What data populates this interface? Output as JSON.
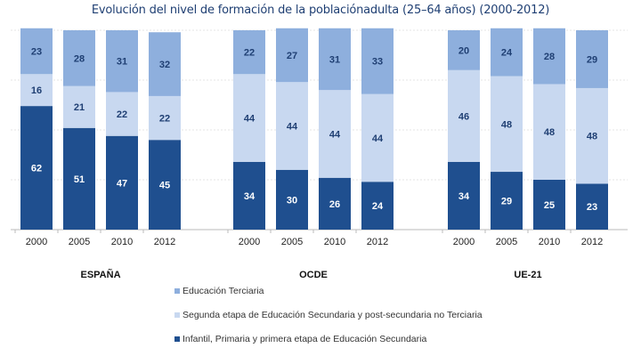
{
  "chart_data": {
    "type": "bar",
    "stacked": true,
    "title": "Evolución del nivel de formación de la poblaciónadulta (25–64 años) (2000-2012)",
    "groups": [
      {
        "name": "ESPAÑA",
        "categories": [
          "2000",
          "2005",
          "2010",
          "2012"
        ],
        "primaria": [
          62,
          51,
          47,
          45
        ],
        "secundaria": [
          16,
          21,
          22,
          22
        ],
        "terciaria": [
          23,
          28,
          31,
          32
        ]
      },
      {
        "name": "OCDE",
        "categories": [
          "2000",
          "2005",
          "2010",
          "2012"
        ],
        "primaria": [
          34,
          30,
          26,
          24
        ],
        "secundaria": [
          44,
          44,
          44,
          44
        ],
        "terciaria": [
          22,
          27,
          31,
          33
        ]
      },
      {
        "name": "UE-21",
        "categories": [
          "2000",
          "2005",
          "2010",
          "2012"
        ],
        "primaria": [
          34,
          29,
          25,
          23
        ],
        "secundaria": [
          46,
          48,
          48,
          48
        ],
        "terciaria": [
          20,
          24,
          28,
          29
        ]
      }
    ],
    "series": [
      {
        "key": "terciaria",
        "name": "Educación Terciaria",
        "color": "#8eafdd",
        "label_color": "#1f3f73"
      },
      {
        "key": "secundaria",
        "name": "Segunda etapa de Educación Secundaria y post-secundaria no Terciaria",
        "color": "#c8d8f0",
        "label_color": "#1f3f73"
      },
      {
        "key": "primaria",
        "name": "Infantil, Primaria y primera etapa de Educación Secundaria",
        "color": "#1f4f8f",
        "label_color": "#ffffff"
      }
    ],
    "ylim": [
      0,
      100
    ],
    "legend_position": "bottom",
    "grid": true
  }
}
